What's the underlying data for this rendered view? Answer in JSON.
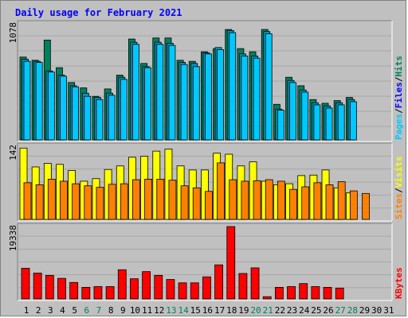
{
  "title": "Daily usage for February 2021",
  "colors": {
    "hits": "#00805c",
    "files": "#0000ff",
    "pages": "#00c8ff",
    "visits": "#ffff00",
    "sites": "#ff8000",
    "kbytes": "#ff0000",
    "weekday": "#000000",
    "weekend": "#00805c"
  },
  "chart_data": [
    {
      "type": "bar",
      "title": "Daily usage for February 2021",
      "categories": [
        "1",
        "2",
        "3",
        "4",
        "5",
        "6",
        "7",
        "8",
        "9",
        "10",
        "11",
        "12",
        "13",
        "14",
        "15",
        "16",
        "17",
        "18",
        "19",
        "20",
        "21",
        "22",
        "23",
        "24",
        "25",
        "26",
        "27",
        "28",
        "29",
        "30",
        "31"
      ],
      "weekend_days": [
        "6",
        "7",
        "13",
        "14",
        "20",
        "21",
        "27",
        "28"
      ],
      "ymax_label": "1078",
      "ymax": 1078,
      "series": [
        {
          "name": "Hits",
          "values": [
            780,
            750,
            940,
            680,
            540,
            490,
            410,
            480,
            610,
            950,
            720,
            960,
            960,
            750,
            740,
            830,
            860,
            1040,
            860,
            830,
            1040,
            335,
            590,
            510,
            380,
            345,
            370,
            400,
            0,
            0,
            0
          ]
        },
        {
          "name": "Files",
          "values": [
            760,
            740,
            650,
            610,
            510,
            440,
            400,
            440,
            590,
            920,
            690,
            920,
            910,
            730,
            720,
            820,
            870,
            1030,
            810,
            790,
            1020,
            290,
            560,
            470,
            350,
            320,
            350,
            380,
            0,
            0,
            0
          ]
        },
        {
          "name": "Pages",
          "values": [
            740,
            730,
            640,
            600,
            500,
            410,
            380,
            420,
            570,
            900,
            680,
            900,
            890,
            710,
            690,
            810,
            850,
            1010,
            790,
            770,
            1000,
            280,
            540,
            450,
            330,
            300,
            330,
            360,
            0,
            0,
            0
          ]
        }
      ],
      "right_label": [
        "Pages",
        "Files",
        "Hits"
      ]
    },
    {
      "type": "bar",
      "categories": [
        "1",
        "2",
        "3",
        "4",
        "5",
        "6",
        "7",
        "8",
        "9",
        "10",
        "11",
        "12",
        "13",
        "14",
        "15",
        "16",
        "17",
        "18",
        "19",
        "20",
        "21",
        "22",
        "23",
        "24",
        "25",
        "26",
        "27",
        "28",
        "29",
        "30",
        "31"
      ],
      "ymax_label": "142",
      "ymax": 142,
      "series": [
        {
          "name": "Visits",
          "values": [
            140,
            103,
            110,
            108,
            96,
            75,
            80,
            98,
            105,
            122,
            124,
            134,
            138,
            105,
            97,
            97,
            130,
            128,
            105,
            113,
            75,
            68,
            70,
            86,
            87,
            97,
            62,
            52,
            0,
            0,
            0
          ]
        },
        {
          "name": "Sites",
          "values": [
            72,
            68,
            79,
            75,
            70,
            66,
            63,
            69,
            70,
            78,
            79,
            79,
            77,
            66,
            62,
            55,
            111,
            78,
            75,
            76,
            78,
            75,
            59,
            64,
            72,
            68,
            74,
            56,
            51,
            0,
            0
          ]
        }
      ],
      "right_label": [
        "Sites",
        "Visits"
      ]
    },
    {
      "type": "bar",
      "categories": [
        "1",
        "2",
        "3",
        "4",
        "5",
        "6",
        "7",
        "8",
        "9",
        "10",
        "11",
        "12",
        "13",
        "14",
        "15",
        "16",
        "17",
        "18",
        "19",
        "20",
        "21",
        "22",
        "23",
        "24",
        "25",
        "26",
        "27",
        "28",
        "29",
        "30",
        "31"
      ],
      "ymax_label": "19338",
      "ymax": 19338,
      "series": [
        {
          "name": "KBytes",
          "values": [
            8200,
            6900,
            6300,
            5500,
            4400,
            3100,
            3300,
            3300,
            7800,
            5400,
            7300,
            6300,
            5200,
            4300,
            4300,
            5900,
            9100,
            19338,
            6800,
            8300,
            600,
            3100,
            3300,
            4100,
            3300,
            3100,
            2900,
            0,
            0,
            0,
            0
          ]
        }
      ],
      "right_label": [
        "KBytes"
      ]
    }
  ]
}
